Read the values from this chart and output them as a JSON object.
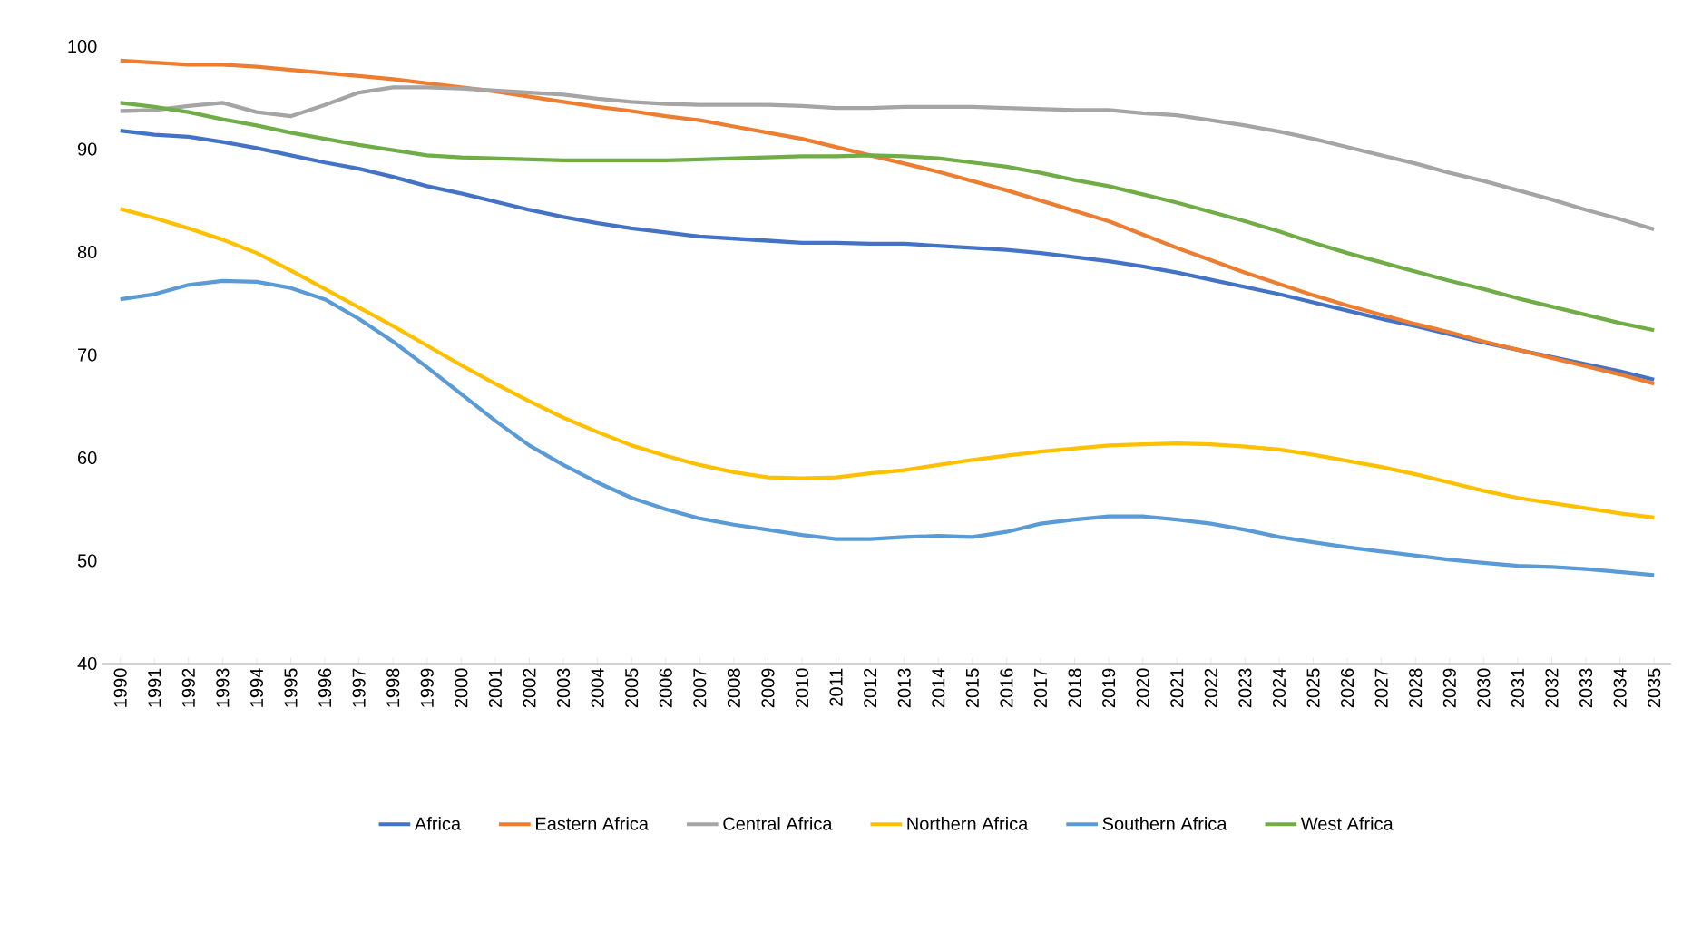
{
  "chart_data": {
    "type": "line",
    "categories": [
      "1990",
      "1991",
      "1992",
      "1993",
      "1994",
      "1995",
      "1996",
      "1997",
      "1998",
      "1999",
      "2000",
      "2001",
      "2002",
      "2003",
      "2004",
      "2005",
      "2006",
      "2007",
      "2008",
      "2009",
      "2010",
      "2011",
      "2012",
      "2013",
      "2014",
      "2015",
      "2016",
      "2017",
      "2018",
      "2019",
      "2020",
      "2021",
      "2022",
      "2023",
      "2024",
      "2025",
      "2026",
      "2027",
      "2028",
      "2029",
      "2030",
      "2031",
      "2032",
      "2033",
      "2034",
      "2035"
    ],
    "series": [
      {
        "name": "Africa",
        "color": "#4472c4",
        "values": [
          91.8,
          91.4,
          91.2,
          90.7,
          90.1,
          89.4,
          88.7,
          88.1,
          87.3,
          86.4,
          85.7,
          84.9,
          84.1,
          83.4,
          82.8,
          82.3,
          81.9,
          81.5,
          81.3,
          81.1,
          80.9,
          80.9,
          80.8,
          80.8,
          80.6,
          80.4,
          80.2,
          79.9,
          79.5,
          79.1,
          78.6,
          78.0,
          77.3,
          76.6,
          75.9,
          75.1,
          74.3,
          73.5,
          72.8,
          72.0,
          71.2,
          70.5,
          69.8,
          69.1,
          68.4,
          67.6
        ]
      },
      {
        "name": "Eastern Africa",
        "color": "#ed7d31",
        "values": [
          98.6,
          98.4,
          98.2,
          98.2,
          98.0,
          97.7,
          97.4,
          97.1,
          96.8,
          96.4,
          96.0,
          95.6,
          95.1,
          94.6,
          94.1,
          93.7,
          93.2,
          92.8,
          92.2,
          91.6,
          91.0,
          90.2,
          89.4,
          88.6,
          87.8,
          86.9,
          86.0,
          85.0,
          84.0,
          83.0,
          81.7,
          80.4,
          79.2,
          78.0,
          76.9,
          75.8,
          74.8,
          73.9,
          73.0,
          72.2,
          71.3,
          70.5,
          69.7,
          68.9,
          68.1,
          67.2
        ]
      },
      {
        "name": "Central Africa",
        "color": "#a5a5a5",
        "values": [
          93.7,
          93.8,
          94.2,
          94.5,
          93.6,
          93.2,
          94.3,
          95.5,
          96.0,
          96.0,
          95.9,
          95.7,
          95.5,
          95.3,
          94.9,
          94.6,
          94.4,
          94.3,
          94.3,
          94.3,
          94.2,
          94.0,
          94.0,
          94.1,
          94.1,
          94.1,
          94.0,
          93.9,
          93.8,
          93.8,
          93.5,
          93.3,
          92.8,
          92.3,
          91.7,
          91.0,
          90.2,
          89.4,
          88.6,
          87.7,
          86.9,
          86.0,
          85.1,
          84.1,
          83.2,
          82.2
        ]
      },
      {
        "name": "Northern Africa",
        "color": "#ffc000",
        "values": [
          84.2,
          83.3,
          82.3,
          81.2,
          79.9,
          78.2,
          76.4,
          74.6,
          72.8,
          70.9,
          69.0,
          67.2,
          65.5,
          63.9,
          62.5,
          61.2,
          60.2,
          59.3,
          58.6,
          58.1,
          58.0,
          58.1,
          58.5,
          58.8,
          59.3,
          59.8,
          60.2,
          60.6,
          60.9,
          61.2,
          61.3,
          61.4,
          61.3,
          61.1,
          60.8,
          60.3,
          59.7,
          59.1,
          58.4,
          57.6,
          56.8,
          56.1,
          55.6,
          55.1,
          54.6,
          54.2
        ]
      },
      {
        "name": "Southern Africa",
        "color": "#5b9bd5",
        "values": [
          75.4,
          75.9,
          76.8,
          77.2,
          77.1,
          76.5,
          75.4,
          73.5,
          71.3,
          68.8,
          66.2,
          63.6,
          61.2,
          59.3,
          57.6,
          56.1,
          55.0,
          54.1,
          53.5,
          53.0,
          52.5,
          52.1,
          52.1,
          52.3,
          52.4,
          52.3,
          52.8,
          53.6,
          54.0,
          54.3,
          54.3,
          54.0,
          53.6,
          53.0,
          52.3,
          51.8,
          51.3,
          50.9,
          50.5,
          50.1,
          49.8,
          49.5,
          49.4,
          49.2,
          48.9,
          48.6
        ]
      },
      {
        "name": "West Africa",
        "color": "#70ad47",
        "values": [
          94.5,
          94.1,
          93.6,
          92.9,
          92.3,
          91.6,
          91.0,
          90.4,
          89.9,
          89.4,
          89.2,
          89.1,
          89.0,
          88.9,
          88.9,
          88.9,
          88.9,
          89.0,
          89.1,
          89.2,
          89.3,
          89.3,
          89.4,
          89.3,
          89.1,
          88.7,
          88.3,
          87.7,
          87.0,
          86.4,
          85.6,
          84.8,
          83.9,
          83.0,
          82.0,
          80.9,
          79.9,
          79.0,
          78.1,
          77.2,
          76.4,
          75.5,
          74.7,
          73.9,
          73.1,
          72.4
        ]
      }
    ],
    "ylim": [
      40,
      100
    ],
    "yticks": [
      40,
      50,
      60,
      70,
      80,
      90,
      100
    ],
    "grid": false,
    "legend": "bottom",
    "marker": "none",
    "line_style": "solid"
  }
}
